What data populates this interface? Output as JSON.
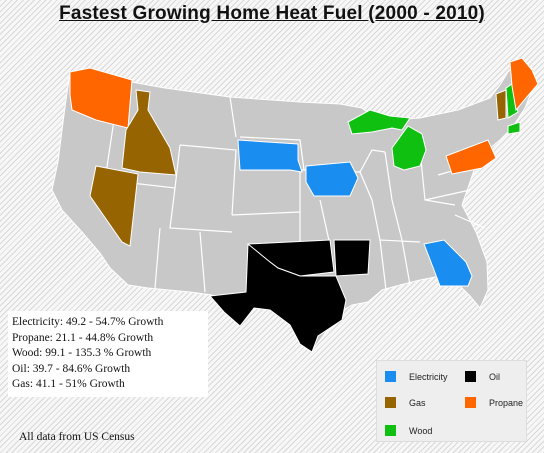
{
  "title": "Fastest Growing Home Heat Fuel (2000 - 2010)",
  "stats": [
    "Electricity: 49.2 - 54.7% Growth",
    "Propane: 21.1 - 44.8% Growth",
    "Wood: 99.1 - 135.3 % Growth",
    "Oil: 39.7 - 84.6% Growth",
    "Gas: 41.1 - 51% Growth"
  ],
  "legend": [
    {
      "label": "Electricity",
      "color": "#1a8ef0"
    },
    {
      "label": "Oil",
      "color": "#000000"
    },
    {
      "label": "Gas",
      "color": "#966400"
    },
    {
      "label": "Propane",
      "color": "#ff6600"
    },
    {
      "label": "Wood",
      "color": "#10c010"
    }
  ],
  "states": [
    {
      "name": "Washington",
      "fuel": "Propane"
    },
    {
      "name": "Idaho",
      "fuel": "Gas"
    },
    {
      "name": "Nevada",
      "fuel": "Gas"
    },
    {
      "name": "South Dakota",
      "fuel": "Electricity"
    },
    {
      "name": "Iowa",
      "fuel": "Electricity"
    },
    {
      "name": "Georgia",
      "fuel": "Electricity"
    },
    {
      "name": "Texas",
      "fuel": "Oil"
    },
    {
      "name": "Oklahoma",
      "fuel": "Oil"
    },
    {
      "name": "Arkansas",
      "fuel": "Oil"
    },
    {
      "name": "Michigan",
      "fuel": "Wood"
    },
    {
      "name": "New Hampshire",
      "fuel": "Wood"
    },
    {
      "name": "Connecticut",
      "fuel": "Wood"
    },
    {
      "name": "Pennsylvania",
      "fuel": "Propane"
    },
    {
      "name": "Maine",
      "fuel": "Propane"
    },
    {
      "name": "Vermont",
      "fuel": "Gas"
    }
  ],
  "source": "All data from US Census"
}
